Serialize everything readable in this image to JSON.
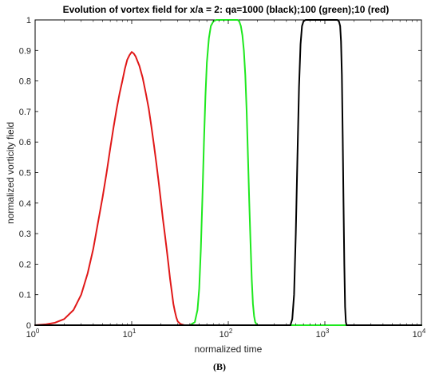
{
  "chart_data": {
    "type": "line",
    "title": "Evolution of vortex field for x/a = 2: qa=1000 (black);100 (green);10 (red)",
    "xlabel": "normalized time",
    "ylabel": "normalized vorticity field",
    "caption": "(B)",
    "x_scale": "log",
    "xlim": [
      1,
      10000
    ],
    "ylim": [
      0,
      1
    ],
    "grid": false,
    "x_ticks": [
      {
        "value": 1,
        "base": "10",
        "exp": "0"
      },
      {
        "value": 10,
        "base": "10",
        "exp": "1"
      },
      {
        "value": 100,
        "base": "10",
        "exp": "2"
      },
      {
        "value": 1000,
        "base": "10",
        "exp": "3"
      },
      {
        "value": 10000,
        "base": "10",
        "exp": "4"
      }
    ],
    "y_ticks": [
      {
        "value": 0,
        "label": "0"
      },
      {
        "value": 0.1,
        "label": "0.1"
      },
      {
        "value": 0.2,
        "label": "0.2"
      },
      {
        "value": 0.3,
        "label": "0.3"
      },
      {
        "value": 0.4,
        "label": "0.4"
      },
      {
        "value": 0.5,
        "label": "0.5"
      },
      {
        "value": 0.6,
        "label": "0.6"
      },
      {
        "value": 0.7,
        "label": "0.7"
      },
      {
        "value": 0.8,
        "label": "0.8"
      },
      {
        "value": 0.9,
        "label": "0.9"
      },
      {
        "value": 1,
        "label": "1"
      }
    ],
    "series": [
      {
        "color": "#e01818",
        "points": [
          [
            1.0,
            0.0
          ],
          [
            1.3,
            0.003
          ],
          [
            1.6,
            0.008
          ],
          [
            2.0,
            0.02
          ],
          [
            2.5,
            0.05
          ],
          [
            3.0,
            0.1
          ],
          [
            3.5,
            0.17
          ],
          [
            4.0,
            0.25
          ],
          [
            4.5,
            0.34
          ],
          [
            5.0,
            0.42
          ],
          [
            5.5,
            0.5
          ],
          [
            6.0,
            0.58
          ],
          [
            6.5,
            0.65
          ],
          [
            7.0,
            0.71
          ],
          [
            7.5,
            0.76
          ],
          [
            8.0,
            0.8
          ],
          [
            8.5,
            0.84
          ],
          [
            9.0,
            0.87
          ],
          [
            9.5,
            0.885
          ],
          [
            10.0,
            0.895
          ],
          [
            10.5,
            0.89
          ],
          [
            11.0,
            0.88
          ],
          [
            12.0,
            0.85
          ],
          [
            13.0,
            0.81
          ],
          [
            14.0,
            0.76
          ],
          [
            15.0,
            0.71
          ],
          [
            16.0,
            0.65
          ],
          [
            17.0,
            0.59
          ],
          [
            18.0,
            0.53
          ],
          [
            19.0,
            0.47
          ],
          [
            20.0,
            0.41
          ],
          [
            21.0,
            0.35
          ],
          [
            22.0,
            0.3
          ],
          [
            23.0,
            0.25
          ],
          [
            24.0,
            0.2
          ],
          [
            25.0,
            0.15
          ],
          [
            26.0,
            0.11
          ],
          [
            27.0,
            0.07
          ],
          [
            28.0,
            0.045
          ],
          [
            29.0,
            0.025
          ],
          [
            30.0,
            0.012
          ],
          [
            32.0,
            0.004
          ],
          [
            35.0,
            0.0
          ],
          [
            200.0,
            0.0
          ]
        ]
      },
      {
        "color": "#1ee81e",
        "points": [
          [
            35.0,
            0.0
          ],
          [
            40.0,
            0.0
          ],
          [
            45.0,
            0.01
          ],
          [
            48.0,
            0.05
          ],
          [
            50.0,
            0.12
          ],
          [
            52.0,
            0.25
          ],
          [
            54.0,
            0.42
          ],
          [
            56.0,
            0.6
          ],
          [
            58.0,
            0.75
          ],
          [
            60.0,
            0.86
          ],
          [
            63.0,
            0.94
          ],
          [
            66.0,
            0.98
          ],
          [
            70.0,
            0.995
          ],
          [
            75.0,
            1.0
          ],
          [
            100.0,
            1.0
          ],
          [
            125.0,
            1.0
          ],
          [
            130.0,
            0.995
          ],
          [
            135.0,
            0.98
          ],
          [
            140.0,
            0.95
          ],
          [
            145.0,
            0.9
          ],
          [
            150.0,
            0.82
          ],
          [
            155.0,
            0.7
          ],
          [
            160.0,
            0.55
          ],
          [
            165.0,
            0.4
          ],
          [
            170.0,
            0.27
          ],
          [
            175.0,
            0.15
          ],
          [
            180.0,
            0.07
          ],
          [
            185.0,
            0.03
          ],
          [
            190.0,
            0.01
          ],
          [
            200.0,
            0.0
          ],
          [
            10000.0,
            0.0
          ]
        ]
      },
      {
        "color": "#000000",
        "points": [
          [
            1.0,
            0.0
          ],
          [
            440.0,
            0.0
          ],
          [
            460.0,
            0.02
          ],
          [
            480.0,
            0.1
          ],
          [
            500.0,
            0.3
          ],
          [
            520.0,
            0.55
          ],
          [
            540.0,
            0.78
          ],
          [
            560.0,
            0.92
          ],
          [
            580.0,
            0.98
          ],
          [
            600.0,
            0.995
          ],
          [
            630.0,
            1.0
          ],
          [
            1350.0,
            1.0
          ],
          [
            1400.0,
            0.995
          ],
          [
            1440.0,
            0.98
          ],
          [
            1470.0,
            0.93
          ],
          [
            1500.0,
            0.82
          ],
          [
            1530.0,
            0.62
          ],
          [
            1560.0,
            0.4
          ],
          [
            1590.0,
            0.2
          ],
          [
            1620.0,
            0.06
          ],
          [
            1650.0,
            0.01
          ],
          [
            1680.0,
            0.0
          ],
          [
            10000.0,
            0.0
          ]
        ]
      }
    ]
  }
}
